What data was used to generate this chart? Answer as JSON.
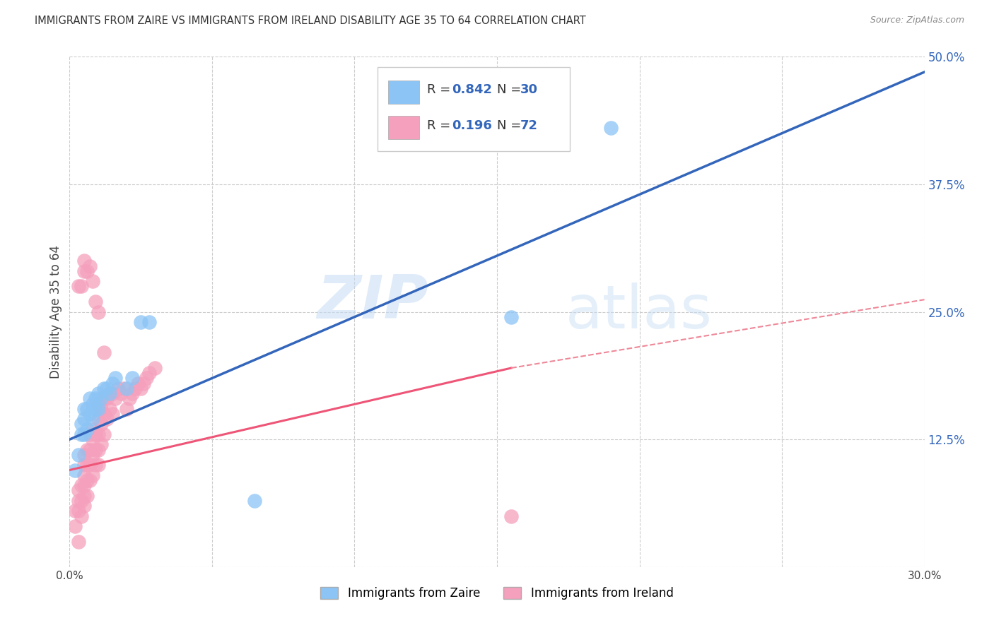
{
  "title": "IMMIGRANTS FROM ZAIRE VS IMMIGRANTS FROM IRELAND DISABILITY AGE 35 TO 64 CORRELATION CHART",
  "source": "Source: ZipAtlas.com",
  "ylabel": "Disability Age 35 to 64",
  "xlim": [
    0.0,
    0.3
  ],
  "ylim": [
    0.0,
    0.5
  ],
  "xticks": [
    0.0,
    0.05,
    0.1,
    0.15,
    0.2,
    0.25,
    0.3
  ],
  "xticklabels": [
    "0.0%",
    "",
    "",
    "",
    "",
    "",
    "30.0%"
  ],
  "yticks": [
    0.0,
    0.125,
    0.25,
    0.375,
    0.5
  ],
  "yticklabels": [
    "",
    "12.5%",
    "25.0%",
    "37.5%",
    "50.0%"
  ],
  "grid_color": "#cccccc",
  "background_color": "#ffffff",
  "zaire_color": "#8BC4F5",
  "ireland_color": "#F5A0BC",
  "zaire_line_color": "#3366BB",
  "ireland_line_color": "#EE5577",
  "ireland_line_dashed_color": "#EE8899",
  "watermark_zip": "ZIP",
  "watermark_atlas": "atlas",
  "legend_label_zaire": "Immigrants from Zaire",
  "legend_label_ireland": "Immigrants from Ireland",
  "zaire_line_x0": 0.0,
  "zaire_line_y0": 0.125,
  "zaire_line_x1": 0.3,
  "zaire_line_y1": 0.485,
  "ireland_line_solid_x0": 0.0,
  "ireland_line_solid_y0": 0.095,
  "ireland_line_solid_x1": 0.155,
  "ireland_line_solid_y1": 0.195,
  "ireland_line_dashed_x0": 0.155,
  "ireland_line_dashed_y0": 0.195,
  "ireland_line_dashed_x1": 0.3,
  "ireland_line_dashed_y1": 0.262,
  "zaire_scatter_x": [
    0.002,
    0.003,
    0.004,
    0.004,
    0.005,
    0.005,
    0.005,
    0.006,
    0.006,
    0.007,
    0.007,
    0.008,
    0.008,
    0.009,
    0.009,
    0.01,
    0.01,
    0.011,
    0.012,
    0.013,
    0.014,
    0.015,
    0.016,
    0.02,
    0.022,
    0.025,
    0.028,
    0.065,
    0.155,
    0.19
  ],
  "zaire_scatter_y": [
    0.095,
    0.11,
    0.13,
    0.14,
    0.13,
    0.145,
    0.155,
    0.135,
    0.155,
    0.15,
    0.165,
    0.145,
    0.16,
    0.155,
    0.165,
    0.155,
    0.17,
    0.165,
    0.175,
    0.175,
    0.17,
    0.18,
    0.185,
    0.175,
    0.185,
    0.24,
    0.24,
    0.065,
    0.245,
    0.43
  ],
  "ireland_scatter_x": [
    0.002,
    0.002,
    0.003,
    0.003,
    0.003,
    0.004,
    0.004,
    0.004,
    0.005,
    0.005,
    0.005,
    0.005,
    0.005,
    0.005,
    0.006,
    0.006,
    0.006,
    0.006,
    0.007,
    0.007,
    0.007,
    0.007,
    0.008,
    0.008,
    0.008,
    0.008,
    0.009,
    0.009,
    0.009,
    0.01,
    0.01,
    0.01,
    0.01,
    0.01,
    0.011,
    0.011,
    0.011,
    0.012,
    0.012,
    0.012,
    0.013,
    0.013,
    0.014,
    0.014,
    0.015,
    0.015,
    0.016,
    0.017,
    0.018,
    0.019,
    0.02,
    0.021,
    0.022,
    0.023,
    0.024,
    0.025,
    0.026,
    0.027,
    0.028,
    0.03,
    0.003,
    0.004,
    0.005,
    0.005,
    0.006,
    0.007,
    0.008,
    0.009,
    0.01,
    0.012,
    0.155,
    0.003
  ],
  "ireland_scatter_y": [
    0.04,
    0.055,
    0.055,
    0.065,
    0.075,
    0.05,
    0.065,
    0.08,
    0.06,
    0.07,
    0.08,
    0.09,
    0.1,
    0.11,
    0.07,
    0.085,
    0.1,
    0.115,
    0.085,
    0.1,
    0.115,
    0.13,
    0.09,
    0.11,
    0.125,
    0.135,
    0.1,
    0.115,
    0.13,
    0.1,
    0.115,
    0.13,
    0.145,
    0.16,
    0.12,
    0.14,
    0.155,
    0.13,
    0.15,
    0.165,
    0.145,
    0.165,
    0.155,
    0.17,
    0.15,
    0.17,
    0.165,
    0.175,
    0.17,
    0.175,
    0.155,
    0.165,
    0.17,
    0.175,
    0.18,
    0.175,
    0.18,
    0.185,
    0.19,
    0.195,
    0.275,
    0.275,
    0.29,
    0.3,
    0.29,
    0.295,
    0.28,
    0.26,
    0.25,
    0.21,
    0.05,
    0.025
  ]
}
